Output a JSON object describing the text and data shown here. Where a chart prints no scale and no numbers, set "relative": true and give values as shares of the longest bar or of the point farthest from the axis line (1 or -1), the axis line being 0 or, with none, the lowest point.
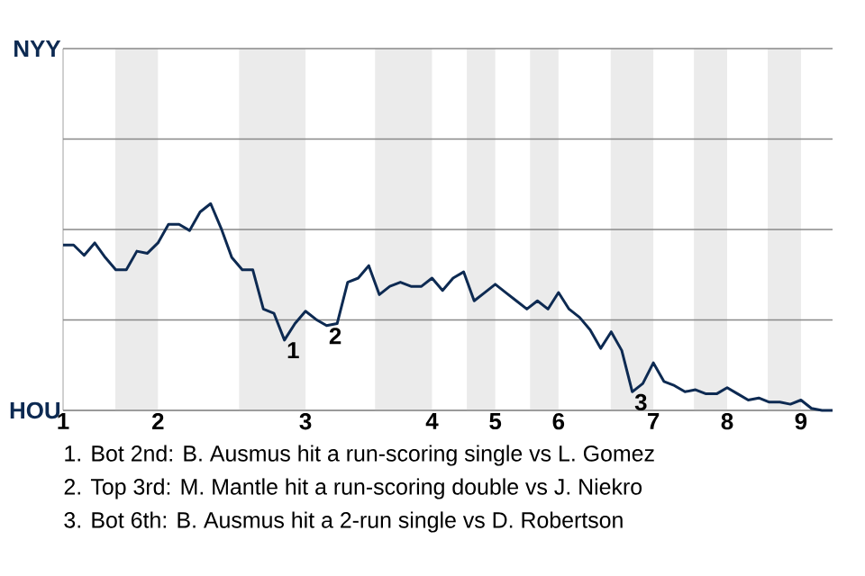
{
  "chart_data": {
    "type": "line",
    "relative": true,
    "categories": [
      "1",
      null,
      null,
      null,
      null,
      null,
      null,
      null,
      null,
      "2",
      null,
      null,
      null,
      null,
      null,
      null,
      null,
      null,
      null,
      null,
      null,
      null,
      null,
      "3",
      null,
      null,
      null,
      null,
      null,
      null,
      null,
      null,
      null,
      null,
      null,
      "4",
      null,
      null,
      null,
      null,
      null,
      "5",
      null,
      null,
      null,
      null,
      null,
      "6",
      null,
      null,
      null,
      null,
      null,
      null,
      null,
      null,
      "7",
      null,
      null,
      null,
      null,
      null,
      null,
      "8",
      null,
      null,
      null,
      null,
      null,
      null,
      "9",
      null,
      null,
      null
    ],
    "ref_lines": [
      {
        "axis": "y",
        "value": 0,
        "label": "HOU",
        "color": "#888888"
      },
      {
        "axis": "y",
        "value": 0.4375,
        "color": "#888888"
      },
      {
        "axis": "y",
        "value": 0.875,
        "color": "#888888"
      },
      {
        "axis": "y",
        "value": 1.3125,
        "color": "#888888"
      },
      {
        "axis": "y",
        "value": 1.75,
        "label": "NYY",
        "color": "#888888"
      }
    ],
    "series": [
      {
        "color": "#0d2a52",
        "values": [
          0.8,
          0.8,
          0.75,
          0.81,
          0.74,
          0.68,
          0.68,
          0.77,
          0.76,
          0.81,
          0.9,
          0.9,
          0.87,
          0.96,
          1,
          0.88,
          0.74,
          0.68,
          0.68,
          0.49,
          0.47,
          0.34,
          0.42,
          0.48,
          0.44,
          0.41,
          0.42,
          0.62,
          0.64,
          0.7,
          0.56,
          0.6,
          0.62,
          0.6,
          0.6,
          0.64,
          0.58,
          0.64,
          0.67,
          0.53,
          0.57,
          0.61,
          0.57,
          0.53,
          0.49,
          0.53,
          0.49,
          0.57,
          0.49,
          0.45,
          0.39,
          0.3,
          0.38,
          0.29,
          0.09,
          0.13,
          0.23,
          0.14,
          0.12,
          0.09,
          0.1,
          0.08,
          0.08,
          0.11,
          0.08,
          0.05,
          0.06,
          0.04,
          0.04,
          0.03,
          0.05,
          0.01,
          0,
          0
        ]
      }
    ],
    "annotations": [
      {
        "text": "1",
        "y": 0.34
      },
      {
        "text": "2",
        "y": 0.41
      },
      {
        "text": "3",
        "y": 0.09
      },
      "1. Bot 2nd: B. Ausmus hit a run-scoring single vs L. Gomez",
      "2. Top 3rd: M. Mantle hit a run-scoring double vs J. Niekro",
      "3. Bot 6th: B. Ausmus hit a 2-run single vs D. Robertson"
    ]
  }
}
